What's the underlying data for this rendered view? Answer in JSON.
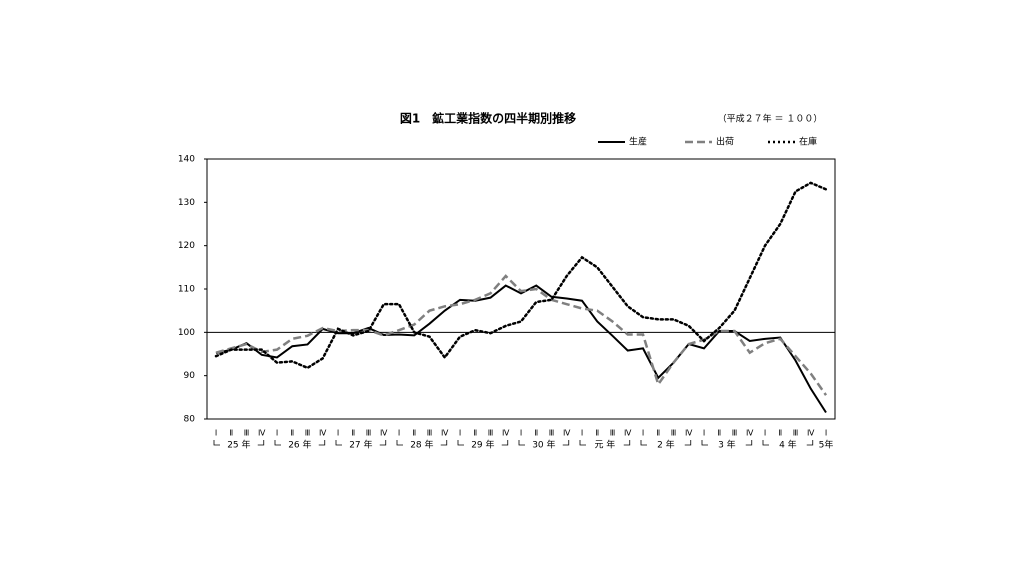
{
  "chart_data": {
    "type": "line",
    "title": "図1　鉱工業指数の四半期別推移",
    "subtitle": "（平成２７年 ＝ １００）",
    "categories": [
      "Ⅰ",
      "Ⅱ",
      "Ⅲ",
      "Ⅳ",
      "Ⅰ",
      "Ⅱ",
      "Ⅲ",
      "Ⅳ",
      "Ⅰ",
      "Ⅱ",
      "Ⅲ",
      "Ⅳ",
      "Ⅰ",
      "Ⅱ",
      "Ⅲ",
      "Ⅳ",
      "Ⅰ",
      "Ⅱ",
      "Ⅲ",
      "Ⅳ",
      "Ⅰ",
      "Ⅱ",
      "Ⅲ",
      "Ⅳ",
      "Ⅰ",
      "Ⅱ",
      "Ⅲ",
      "Ⅳ",
      "Ⅰ",
      "Ⅱ",
      "Ⅲ",
      "Ⅳ",
      "Ⅰ",
      "Ⅱ",
      "Ⅲ",
      "Ⅳ",
      "Ⅰ",
      "Ⅱ",
      "Ⅲ",
      "Ⅳ",
      "Ⅰ"
    ],
    "year_labels": [
      "25 年",
      "26 年",
      "27 年",
      "28 年",
      "29 年",
      "30 年",
      "元 年",
      "2 年",
      "3 年",
      "4 年",
      "5年"
    ],
    "series": [
      {
        "name": "生産",
        "color": "#000000",
        "style": "solid",
        "values": [
          95.2,
          96,
          97.5,
          94.8,
          94.2,
          96.8,
          97.2,
          100.8,
          99.8,
          99.8,
          101,
          99.4,
          99.5,
          99.3,
          102,
          105,
          107.5,
          107.3,
          108,
          110.8,
          109,
          110.8,
          108.2,
          107.8,
          107.3,
          102.5,
          99.2,
          95.8,
          96.3,
          89.5,
          93,
          97.3,
          96.3,
          100.3,
          100.3,
          98,
          98.5,
          98.8,
          93.5,
          87,
          81.5
        ]
      },
      {
        "name": "出荷",
        "color": "#808080",
        "style": "dashed",
        "values": [
          95.3,
          96.3,
          97.3,
          95.5,
          96,
          98.5,
          99.2,
          101,
          100.3,
          100.5,
          100.5,
          99.3,
          100.5,
          101.8,
          105,
          106,
          106.5,
          107.5,
          109,
          113,
          109.5,
          110,
          107.5,
          106.5,
          105.5,
          105,
          102.5,
          99.5,
          99.5,
          88,
          93,
          97.3,
          98.3,
          100.3,
          100.3,
          95.3,
          97.5,
          98.5,
          94.5,
          90.5,
          85.5
        ]
      },
      {
        "name": "在庫",
        "color": "#000000",
        "style": "dotted",
        "values": [
          94.5,
          96,
          96,
          96,
          93,
          93.3,
          91.8,
          94,
          100.8,
          99.3,
          100.3,
          106.5,
          106.5,
          100,
          99,
          94.2,
          99,
          100.5,
          99.8,
          101.5,
          102.5,
          107,
          107.5,
          113,
          117.3,
          115,
          110.5,
          106,
          103.5,
          103,
          103,
          101.5,
          98,
          101,
          105,
          112.5,
          120,
          125,
          132.5,
          134.5,
          133
        ]
      }
    ],
    "reference_line": 100,
    "ylim": [
      80,
      140
    ],
    "yticks": [
      80,
      90,
      100,
      110,
      120,
      130,
      140
    ],
    "legend": "top-right"
  }
}
